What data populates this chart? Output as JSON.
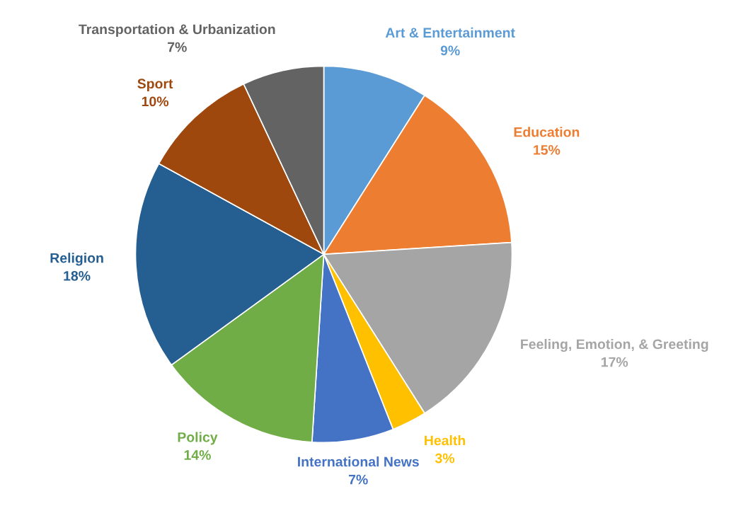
{
  "chart_data": {
    "type": "pie",
    "categories": [
      "Art & Entertainment",
      "Education",
      "Feeling, Emotion, & Greeting",
      "Health",
      "International News",
      "Policy",
      "Religion",
      "Sport",
      "Transportation & Urbanization"
    ],
    "values": [
      9,
      15,
      17,
      3,
      7,
      14,
      18,
      10,
      7
    ],
    "value_labels": [
      "9%",
      "15%",
      "17%",
      "3%",
      "7%",
      "14%",
      "18%",
      "10%",
      "7%"
    ],
    "colors": [
      "#5b9bd5",
      "#ed7d31",
      "#a5a5a5",
      "#ffc000",
      "#4472c4",
      "#70ad47",
      "#255e91",
      "#9e480e",
      "#636363"
    ],
    "legend": false
  }
}
